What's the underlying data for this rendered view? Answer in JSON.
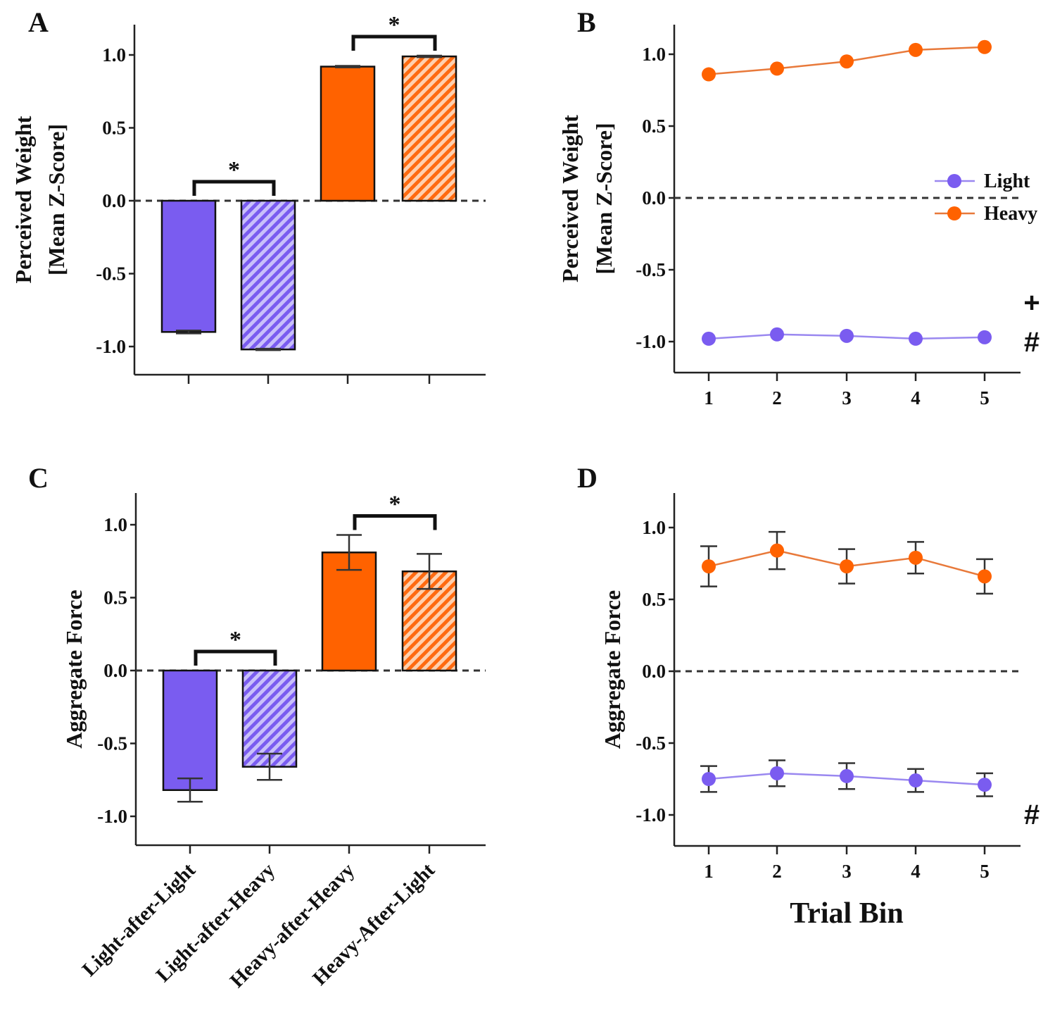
{
  "figure": {
    "colors": {
      "light": "#7a5cf0",
      "light_line": "#9a88f0",
      "heavy": "#ff6200",
      "heavy_line": "#e8793a",
      "axis": "#222222",
      "errorbar": "#333333"
    }
  },
  "chart_data": [
    {
      "id": "A",
      "panel_label": "A",
      "type": "bar",
      "title": "",
      "ylabel_line1": "Perceived Weight",
      "ylabel_line2": "[Mean Z-Score]",
      "xlabel": "",
      "ylim": [
        -1.2,
        1.2
      ],
      "yticks": [
        1.0,
        0.5,
        0.0,
        -0.5,
        -1.0
      ],
      "ytick_labels": [
        "1.0",
        "0.5",
        "0.0",
        "-0.5",
        "-1.0"
      ],
      "categories": [
        "Light-after-Light",
        "Light-after-Heavy",
        "Heavy-after-Heavy",
        "Heavy-After-Light"
      ],
      "show_category_labels": false,
      "values": [
        -0.9,
        -1.02,
        0.92,
        0.99
      ],
      "errors": [
        0.01,
        0.005,
        0.005,
        0.005
      ],
      "fills": [
        "light",
        "light",
        "heavy",
        "heavy"
      ],
      "hatched": [
        false,
        true,
        false,
        true
      ],
      "zero_line": "dashed",
      "significance": [
        {
          "between": [
            0,
            1
          ],
          "label": "*"
        },
        {
          "between": [
            2,
            3
          ],
          "label": "*"
        }
      ]
    },
    {
      "id": "B",
      "panel_label": "B",
      "type": "line",
      "title": "",
      "ylabel_line1": "Perceived Weight",
      "ylabel_line2": "[Mean Z-Score]",
      "xlabel": "",
      "x": [
        1,
        2,
        3,
        4,
        5
      ],
      "xtick_labels": [
        "1",
        "2",
        "3",
        "4",
        "5"
      ],
      "ylim": [
        -1.2,
        1.2
      ],
      "yticks": [
        1.0,
        0.5,
        0.0,
        -0.5,
        -1.0
      ],
      "ytick_labels": [
        "1.0",
        "0.5",
        "0.0",
        "-0.5",
        "-1.0"
      ],
      "zero_line": "dashed",
      "legend_position": "right",
      "series": [
        {
          "name": "Light",
          "color": "light",
          "values": [
            -0.98,
            -0.95,
            -0.96,
            -0.98,
            -0.97
          ],
          "errors": [
            0,
            0,
            0,
            0,
            0
          ]
        },
        {
          "name": "Heavy",
          "color": "heavy",
          "values": [
            0.86,
            0.9,
            0.95,
            1.03,
            1.05
          ],
          "errors": [
            0,
            0,
            0,
            0,
            0
          ]
        }
      ],
      "annotations": [
        "+",
        "#"
      ]
    },
    {
      "id": "C",
      "panel_label": "C",
      "type": "bar",
      "title": "",
      "ylabel_line1": "Aggregate Force",
      "ylabel_line2": "",
      "xlabel": "",
      "ylim": [
        -1.2,
        1.2
      ],
      "yticks": [
        1.0,
        0.5,
        0.0,
        -0.5,
        -1.0
      ],
      "ytick_labels": [
        "1.0",
        "0.5",
        "0.0",
        "-0.5",
        "-1.0"
      ],
      "categories": [
        "Light-after-Light",
        "Light-after-Heavy",
        "Heavy-after-Heavy",
        "Heavy-After-Light"
      ],
      "show_category_labels": true,
      "values": [
        -0.82,
        -0.66,
        0.81,
        0.68
      ],
      "errors": [
        0.08,
        0.09,
        0.12,
        0.12
      ],
      "fills": [
        "light",
        "light",
        "heavy",
        "heavy"
      ],
      "hatched": [
        false,
        true,
        false,
        true
      ],
      "zero_line": "dashed",
      "significance": [
        {
          "between": [
            0,
            1
          ],
          "label": "*"
        },
        {
          "between": [
            2,
            3
          ],
          "label": "*"
        }
      ]
    },
    {
      "id": "D",
      "panel_label": "D",
      "type": "line",
      "title": "",
      "ylabel_line1": "Aggregate Force",
      "ylabel_line2": "",
      "xlabel": "Trial Bin",
      "x": [
        1,
        2,
        3,
        4,
        5
      ],
      "xtick_labels": [
        "1",
        "2",
        "3",
        "4",
        "5"
      ],
      "ylim": [
        -1.2,
        1.2
      ],
      "yticks": [
        1.0,
        0.5,
        0.0,
        -0.5,
        -1.0
      ],
      "ytick_labels": [
        "1.0",
        "0.5",
        "0.0",
        "-0.5",
        "-1.0"
      ],
      "zero_line": "dashed",
      "series": [
        {
          "name": "Light",
          "color": "light",
          "values": [
            -0.75,
            -0.71,
            -0.73,
            -0.76,
            -0.79
          ],
          "errors": [
            0.09,
            0.09,
            0.09,
            0.08,
            0.08
          ]
        },
        {
          "name": "Heavy",
          "color": "heavy",
          "values": [
            0.73,
            0.84,
            0.73,
            0.79,
            0.66
          ],
          "errors": [
            0.14,
            0.13,
            0.12,
            0.11,
            0.12
          ]
        }
      ],
      "annotations": [
        "#"
      ]
    }
  ]
}
